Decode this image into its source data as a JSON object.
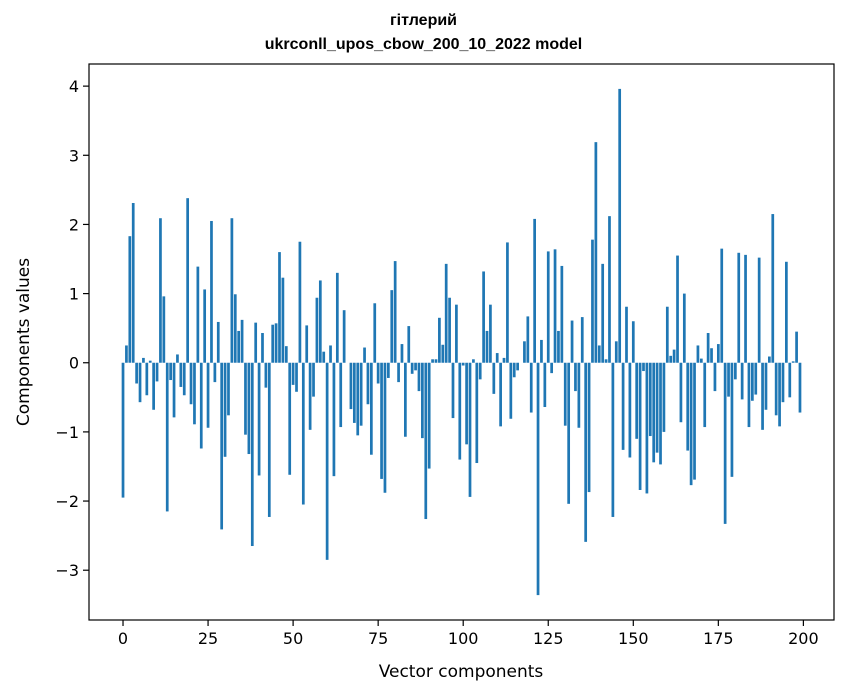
{
  "chart_data": {
    "type": "bar",
    "title_lines": [
      "гітлерий",
      "ukrconll_upos_cbow_200_10_2022 model"
    ],
    "xlabel": "Vector components",
    "ylabel": "Components values",
    "xlim": [
      -10,
      209
    ],
    "ylim": [
      -3.72,
      4.32
    ],
    "xticks": [
      0,
      25,
      50,
      75,
      100,
      125,
      150,
      175,
      200
    ],
    "yticks": [
      -3,
      -2,
      -1,
      0,
      1,
      2,
      3,
      4
    ],
    "bar_color": "#1f77b4",
    "grid": false,
    "values": [
      -1.95,
      0.25,
      1.83,
      2.31,
      -0.3,
      -0.57,
      0.07,
      -0.47,
      0.03,
      -0.68,
      -0.27,
      2.09,
      0.96,
      -2.15,
      -0.25,
      -0.79,
      0.12,
      -0.35,
      -0.47,
      2.38,
      -0.6,
      -0.89,
      1.39,
      -1.24,
      1.06,
      -0.94,
      2.05,
      -0.28,
      0.59,
      -2.41,
      -1.36,
      -0.76,
      2.09,
      0.99,
      0.46,
      0.62,
      -1.04,
      -1.32,
      -2.65,
      0.58,
      -1.63,
      0.43,
      -0.36,
      -2.23,
      0.55,
      0.57,
      1.6,
      1.23,
      0.24,
      -1.62,
      -0.32,
      -0.42,
      1.75,
      -2.05,
      0.54,
      -0.97,
      -0.49,
      0.94,
      1.19,
      0.16,
      -2.85,
      0.25,
      -1.64,
      1.3,
      -0.93,
      0.76,
      0.0,
      -0.67,
      -0.87,
      -1.05,
      -0.91,
      0.22,
      -0.6,
      -1.33,
      0.86,
      -0.3,
      -1.68,
      -1.88,
      -0.22,
      1.05,
      1.47,
      -0.28,
      0.27,
      -1.07,
      0.53,
      -0.16,
      -0.11,
      -0.41,
      -1.09,
      -2.26,
      -1.53,
      0.05,
      0.05,
      0.65,
      0.26,
      1.43,
      0.94,
      -0.8,
      0.84,
      -1.4,
      -0.04,
      -1.18,
      -1.94,
      0.05,
      -1.45,
      -0.24,
      1.32,
      0.46,
      0.84,
      -0.45,
      0.14,
      -0.92,
      0.07,
      1.74,
      -0.81,
      -0.21,
      -0.11,
      0.0,
      0.31,
      0.67,
      -0.72,
      2.08,
      -3.36,
      0.33,
      -0.64,
      1.61,
      -0.15,
      1.64,
      0.46,
      1.4,
      -0.91,
      -2.04,
      0.61,
      -0.41,
      -0.94,
      0.66,
      -2.59,
      -1.87,
      1.78,
      3.19,
      0.25,
      1.43,
      0.05,
      2.12,
      -2.23,
      0.31,
      3.96,
      -1.26,
      0.81,
      -1.37,
      0.6,
      -1.1,
      -1.84,
      -0.12,
      -1.89,
      -1.06,
      -1.44,
      -1.3,
      -1.47,
      -1.0,
      0.81,
      0.1,
      0.19,
      1.55,
      -0.86,
      1.0,
      -1.27,
      -1.77,
      -1.69,
      0.25,
      0.06,
      -0.93,
      0.43,
      0.21,
      -0.41,
      0.27,
      1.65,
      -2.33,
      -0.49,
      -1.65,
      -0.24,
      1.59,
      -0.53,
      1.56,
      -0.93,
      -0.55,
      -0.46,
      1.52,
      -0.97,
      -0.68,
      0.09,
      2.15,
      -0.76,
      -0.92,
      -0.57,
      1.46,
      -0.5,
      0.02,
      0.45,
      -0.72
    ]
  }
}
